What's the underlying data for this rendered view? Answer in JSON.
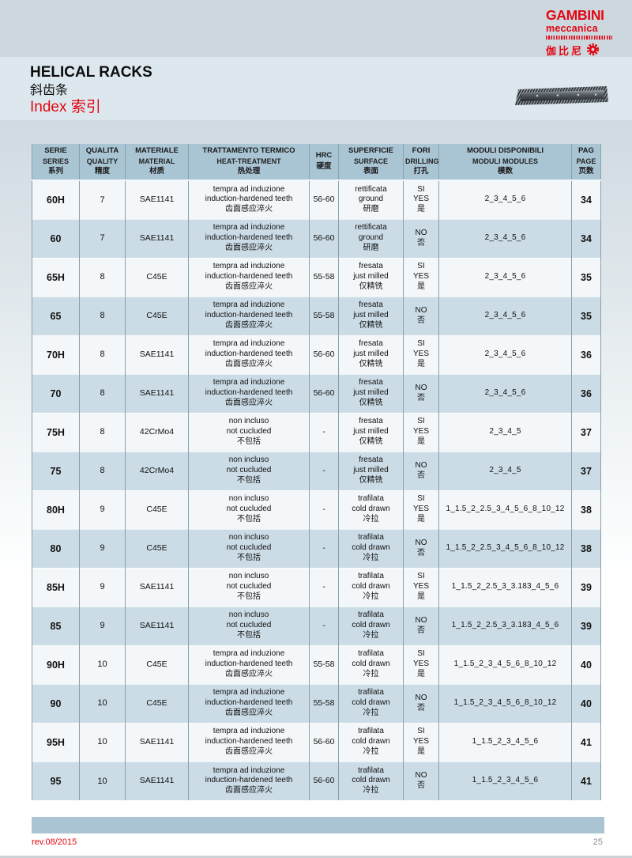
{
  "logo": {
    "line1": "GAMBINI",
    "line2": "meccanica",
    "chinese": "伽比尼"
  },
  "header": {
    "title": "HELICAL RACKS",
    "title_cn": "斜齿条",
    "index_label": "Index",
    "index_cn": "索引"
  },
  "table": {
    "columns": [
      {
        "it": "SERIE",
        "en": "SERIES",
        "cn": "系列"
      },
      {
        "it": "QUALITA",
        "en": "QUALITY",
        "cn": "精度"
      },
      {
        "it": "MATERIALE",
        "en": "MATERIAL",
        "cn": "材质"
      },
      {
        "it": "TRATTAMENTO TERMICO",
        "en": "HEAT-TREATMENT",
        "cn": "热处理"
      },
      {
        "it": "HRC",
        "cn": "硬度"
      },
      {
        "it": "SUPERFICIE",
        "en": "SURFACE",
        "cn": "表面"
      },
      {
        "it": "FORI",
        "en": "DRILLING",
        "cn": "打孔"
      },
      {
        "it": "MODULI DISPONIBILI",
        "en": "MODULI MODULES",
        "cn": "模数"
      },
      {
        "it": "PAG",
        "en": "PAGE",
        "cn": "页数"
      }
    ],
    "rows": [
      {
        "serie": "60H",
        "quality": "7",
        "material": "SAE1141",
        "treatment": [
          "tempra ad induzione",
          "induction-hardened teeth",
          "齿面感应淬火"
        ],
        "hrc": "56-60",
        "surface": [
          "rettificata",
          "ground",
          "研磨"
        ],
        "drilling": [
          "SI",
          "YES",
          "是"
        ],
        "moduli": "2_3_4_5_6",
        "page": "34"
      },
      {
        "serie": "60",
        "quality": "7",
        "material": "SAE1141",
        "treatment": [
          "tempra ad induzione",
          "induction-hardened teeth",
          "齿面感应淬火"
        ],
        "hrc": "56-60",
        "surface": [
          "rettificata",
          "ground",
          "研磨"
        ],
        "drilling": [
          "NO",
          "否"
        ],
        "moduli": "2_3_4_5_6",
        "page": "34"
      },
      {
        "serie": "65H",
        "quality": "8",
        "material": "C45E",
        "treatment": [
          "tempra ad induzione",
          "induction-hardened teeth",
          "齿面感应淬火"
        ],
        "hrc": "55-58",
        "surface": [
          "fresata",
          "just milled",
          "仅精铣"
        ],
        "drilling": [
          "SI",
          "YES",
          "是"
        ],
        "moduli": "2_3_4_5_6",
        "page": "35"
      },
      {
        "serie": "65",
        "quality": "8",
        "material": "C45E",
        "treatment": [
          "tempra ad induzione",
          "induction-hardened teeth",
          "齿面感应淬火"
        ],
        "hrc": "55-58",
        "surface": [
          "fresata",
          "just milled",
          "仅精铣"
        ],
        "drilling": [
          "NO",
          "否"
        ],
        "moduli": "2_3_4_5_6",
        "page": "35"
      },
      {
        "serie": "70H",
        "quality": "8",
        "material": "SAE1141",
        "treatment": [
          "tempra ad induzione",
          "induction-hardened teeth",
          "齿面感应淬火"
        ],
        "hrc": "56-60",
        "surface": [
          "fresata",
          "just milled",
          "仅精铣"
        ],
        "drilling": [
          "SI",
          "YES",
          "是"
        ],
        "moduli": "2_3_4_5_6",
        "page": "36"
      },
      {
        "serie": "70",
        "quality": "8",
        "material": "SAE1141",
        "treatment": [
          "tempra ad induzione",
          "induction-hardened teeth",
          "齿面感应淬火"
        ],
        "hrc": "56-60",
        "surface": [
          "fresata",
          "just milled",
          "仅精铣"
        ],
        "drilling": [
          "NO",
          "否"
        ],
        "moduli": "2_3_4_5_6",
        "page": "36"
      },
      {
        "serie": "75H",
        "quality": "8",
        "material": "42CrMo4",
        "treatment": [
          "non incluso",
          "not cucluded",
          "不包括"
        ],
        "hrc": "-",
        "surface": [
          "fresata",
          "just milled",
          "仅精铣"
        ],
        "drilling": [
          "SI",
          "YES",
          "是"
        ],
        "moduli": "2_3_4_5",
        "page": "37"
      },
      {
        "serie": "75",
        "quality": "8",
        "material": "42CrMo4",
        "treatment": [
          "non incluso",
          "not cucluded",
          "不包括"
        ],
        "hrc": "-",
        "surface": [
          "fresata",
          "just milled",
          "仅精铣"
        ],
        "drilling": [
          "NO",
          "否"
        ],
        "moduli": "2_3_4_5",
        "page": "37"
      },
      {
        "serie": "80H",
        "quality": "9",
        "material": "C45E",
        "treatment": [
          "non incluso",
          "not cucluded",
          "不包括"
        ],
        "hrc": "-",
        "surface": [
          "trafilata",
          "cold drawn",
          "冷拉"
        ],
        "drilling": [
          "SI",
          "YES",
          "是"
        ],
        "moduli": "1_1.5_2_2.5_3_4_5_6_8_10_12",
        "page": "38"
      },
      {
        "serie": "80",
        "quality": "9",
        "material": "C45E",
        "treatment": [
          "non incluso",
          "not cucluded",
          "不包括"
        ],
        "hrc": "-",
        "surface": [
          "trafilata",
          "cold drawn",
          "冷拉"
        ],
        "drilling": [
          "NO",
          "否"
        ],
        "moduli": "1_1.5_2_2.5_3_4_5_6_8_10_12",
        "page": "38"
      },
      {
        "serie": "85H",
        "quality": "9",
        "material": "SAE1141",
        "treatment": [
          "non incluso",
          "not cucluded",
          "不包括"
        ],
        "hrc": "-",
        "surface": [
          "trafilata",
          "cold drawn",
          "冷拉"
        ],
        "drilling": [
          "SI",
          "YES",
          "是"
        ],
        "moduli": "1_1.5_2_2.5_3_3.183_4_5_6",
        "page": "39"
      },
      {
        "serie": "85",
        "quality": "9",
        "material": "SAE1141",
        "treatment": [
          "non incluso",
          "not cucluded",
          "不包括"
        ],
        "hrc": "-",
        "surface": [
          "trafilata",
          "cold drawn",
          "冷拉"
        ],
        "drilling": [
          "NO",
          "否"
        ],
        "moduli": "1_1.5_2_2.5_3_3.183_4_5_6",
        "page": "39"
      },
      {
        "serie": "90H",
        "quality": "10",
        "material": "C45E",
        "treatment": [
          "tempra ad induzione",
          "induction-hardened teeth",
          "齿面感应淬火"
        ],
        "hrc": "55-58",
        "surface": [
          "trafilata",
          "cold drawn",
          "冷拉"
        ],
        "drilling": [
          "SI",
          "YES",
          "是"
        ],
        "moduli": "1_1.5_2_3_4_5_6_8_10_12",
        "page": "40"
      },
      {
        "serie": "90",
        "quality": "10",
        "material": "C45E",
        "treatment": [
          "tempra ad induzione",
          "induction-hardened teeth",
          "齿面感应淬火"
        ],
        "hrc": "55-58",
        "surface": [
          "trafilata",
          "cold drawn",
          "冷拉"
        ],
        "drilling": [
          "NO",
          "否"
        ],
        "moduli": "1_1.5_2_3_4_5_6_8_10_12",
        "page": "40"
      },
      {
        "serie": "95H",
        "quality": "10",
        "material": "SAE1141",
        "treatment": [
          "tempra ad induzione",
          "induction-hardened teeth",
          "齿面感应淬火"
        ],
        "hrc": "56-60",
        "surface": [
          "trafilata",
          "cold drawn",
          "冷拉"
        ],
        "drilling": [
          "SI",
          "YES",
          "是"
        ],
        "moduli": "1_1.5_2_3_4_5_6",
        "page": "41"
      },
      {
        "serie": "95",
        "quality": "10",
        "material": "SAE1141",
        "treatment": [
          "tempra ad induzione",
          "induction-hardened teeth",
          "齿面感应淬火"
        ],
        "hrc": "56-60",
        "surface": [
          "trafilata",
          "cold drawn",
          "冷拉"
        ],
        "drilling": [
          "NO",
          "否"
        ],
        "moduli": "1_1.5_2_3_4_5_6",
        "page": "41"
      }
    ]
  },
  "footer": {
    "revision": "rev.08/2015",
    "page_number": "25"
  },
  "colors": {
    "brand_red": "#e30613",
    "band_top": "#ccd7de",
    "band_title": "#dce8ee",
    "header_bg": "#a9c5d4",
    "row_light": "#f3f7f9",
    "row_blue": "#cbdce6",
    "footer_bar": "#abc4d3"
  }
}
